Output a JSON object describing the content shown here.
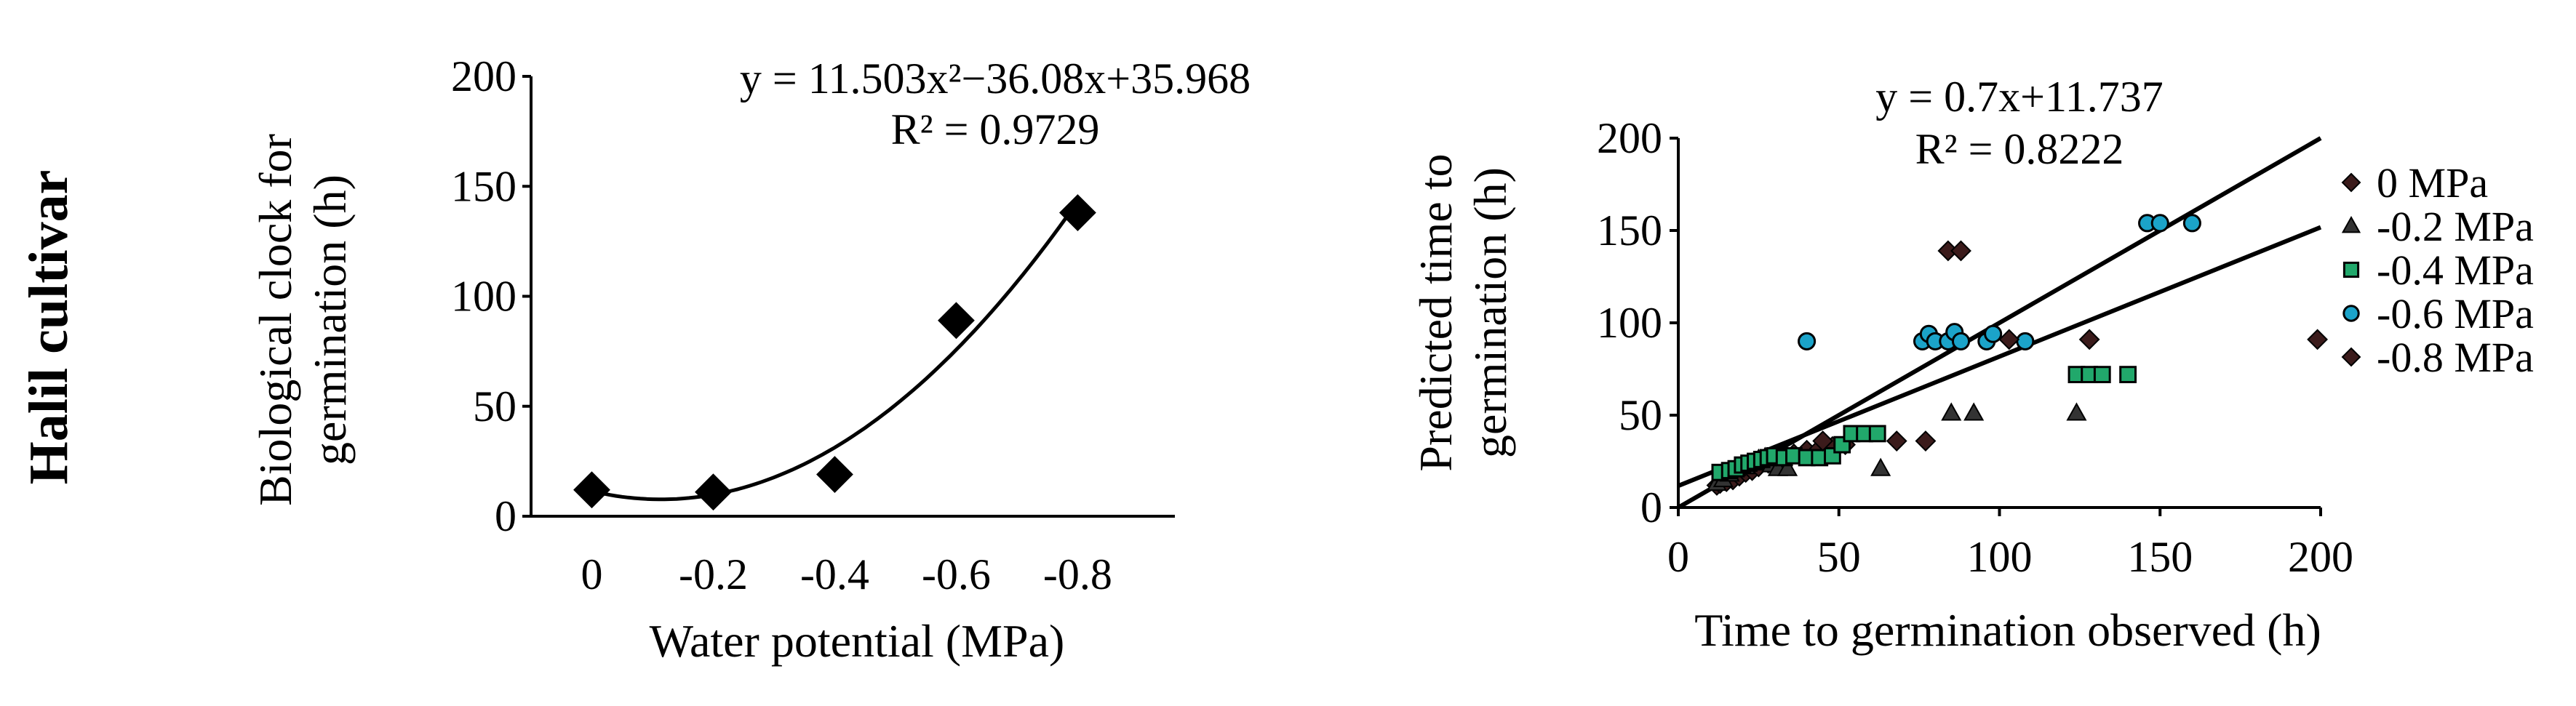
{
  "side_label": "Halil cultivar",
  "chart_data": [
    {
      "type": "scatter",
      "xlabel": "Water potential (MPa)",
      "ylabel_lines": [
        "Biological clock for",
        "germination (h)"
      ],
      "ylim": [
        0,
        200
      ],
      "yticks": [
        "0",
        "50",
        "100",
        "150",
        "200"
      ],
      "yticks_values": [
        0,
        50,
        100,
        150,
        200
      ],
      "x_categories": [
        "0",
        "-0.2",
        "-0.4",
        "-0.6",
        "-0.8"
      ],
      "points": [
        {
          "x": "0",
          "y": 12
        },
        {
          "x": "-0.2",
          "y": 11
        },
        {
          "x": "-0.4",
          "y": 19
        },
        {
          "x": "-0.6",
          "y": 89
        },
        {
          "x": "-0.8",
          "y": 138
        }
      ],
      "marker": "diamond",
      "trendline": {
        "kind": "polynomial",
        "a": 11.503,
        "b": -36.08,
        "c": 35.968
      },
      "equation": "y = 11.503x²−36.08x+35.968",
      "r2": "R² = 0.9729",
      "grid": false
    },
    {
      "type": "scatter",
      "xlabel": "Time to germination observed (h)",
      "ylabel_lines": [
        "Predicted time to",
        "germination (h)"
      ],
      "xlim": [
        0,
        200
      ],
      "ylim": [
        0,
        200
      ],
      "xticks": [
        "0",
        "50",
        "100",
        "150",
        "200"
      ],
      "xticks_values": [
        0,
        50,
        100,
        150,
        200
      ],
      "yticks": [
        "0",
        "50",
        "100",
        "150",
        "200"
      ],
      "yticks_values": [
        0,
        50,
        100,
        150,
        200
      ],
      "equation": "y = 0.7x+11.737",
      "r2": "R² = 0.8222",
      "fit_line": {
        "slope": 0.7,
        "intercept": 11.737
      },
      "one_to_one_line": {
        "slope": 1,
        "intercept": 0
      },
      "legend_position": "right",
      "grid": false,
      "series": [
        {
          "name": "0 MPa",
          "marker": "diamond",
          "color": "#3b1b1b",
          "points": [
            [
              12,
              12
            ],
            [
              13,
              13
            ],
            [
              15,
              14
            ],
            [
              17,
              15
            ],
            [
              19,
              17
            ],
            [
              21,
              19
            ],
            [
              23,
              20
            ],
            [
              25,
              22
            ],
            [
              28,
              24
            ],
            [
              30,
              26
            ],
            [
              33,
              27
            ],
            [
              36,
              29
            ],
            [
              40,
              31
            ],
            [
              44,
              32
            ],
            [
              48,
              33
            ],
            [
              52,
              34
            ]
          ]
        },
        {
          "name": "-0.2 MPa",
          "marker": "triangle",
          "color": "#333333",
          "points": [
            [
              12,
              13
            ],
            [
              14,
              15
            ],
            [
              16,
              18
            ],
            [
              18,
              21
            ],
            [
              21,
              22
            ],
            [
              23,
              24
            ],
            [
              25,
              26
            ],
            [
              27,
              27
            ],
            [
              29,
              23
            ],
            [
              31,
              21
            ],
            [
              34,
              21
            ],
            [
              63,
              21
            ],
            [
              85,
              51
            ],
            [
              92,
              51
            ],
            [
              124,
              51
            ]
          ]
        },
        {
          "name": "-0.4 MPa",
          "marker": "square",
          "color": "#21a86b",
          "points": [
            [
              13,
              19
            ],
            [
              16,
              20
            ],
            [
              18,
              21
            ],
            [
              20,
              23
            ],
            [
              22,
              24
            ],
            [
              24,
              25
            ],
            [
              26,
              26
            ],
            [
              28,
              27
            ],
            [
              30,
              28
            ],
            [
              33,
              27
            ],
            [
              36,
              28
            ],
            [
              40,
              27
            ],
            [
              44,
              27
            ],
            [
              48,
              28
            ],
            [
              51,
              34
            ],
            [
              54,
              40
            ],
            [
              58,
              40
            ],
            [
              62,
              40
            ],
            [
              124,
              72
            ],
            [
              128,
              72
            ],
            [
              132,
              72
            ],
            [
              140,
              72
            ]
          ]
        },
        {
          "name": "-0.6 MPa",
          "marker": "circle",
          "color": "#1ba3c9",
          "points": [
            [
              40,
              90
            ],
            [
              76,
              90
            ],
            [
              78,
              94
            ],
            [
              80,
              90
            ],
            [
              84,
              90
            ],
            [
              86,
              95
            ],
            [
              88,
              90
            ],
            [
              96,
              90
            ],
            [
              98,
              94
            ],
            [
              108,
              90
            ],
            [
              146,
              154
            ],
            [
              150,
              154
            ],
            [
              160,
              154
            ]
          ]
        },
        {
          "name": "-0.8 MPa",
          "marker": "diamond",
          "color": "#3b1b1b",
          "points": [
            [
              45,
              36
            ],
            [
              68,
              36
            ],
            [
              77,
              36
            ],
            [
              84,
              139
            ],
            [
              88,
              139
            ],
            [
              103,
              91
            ],
            [
              128,
              91
            ],
            [
              199,
              91
            ]
          ]
        }
      ]
    }
  ]
}
